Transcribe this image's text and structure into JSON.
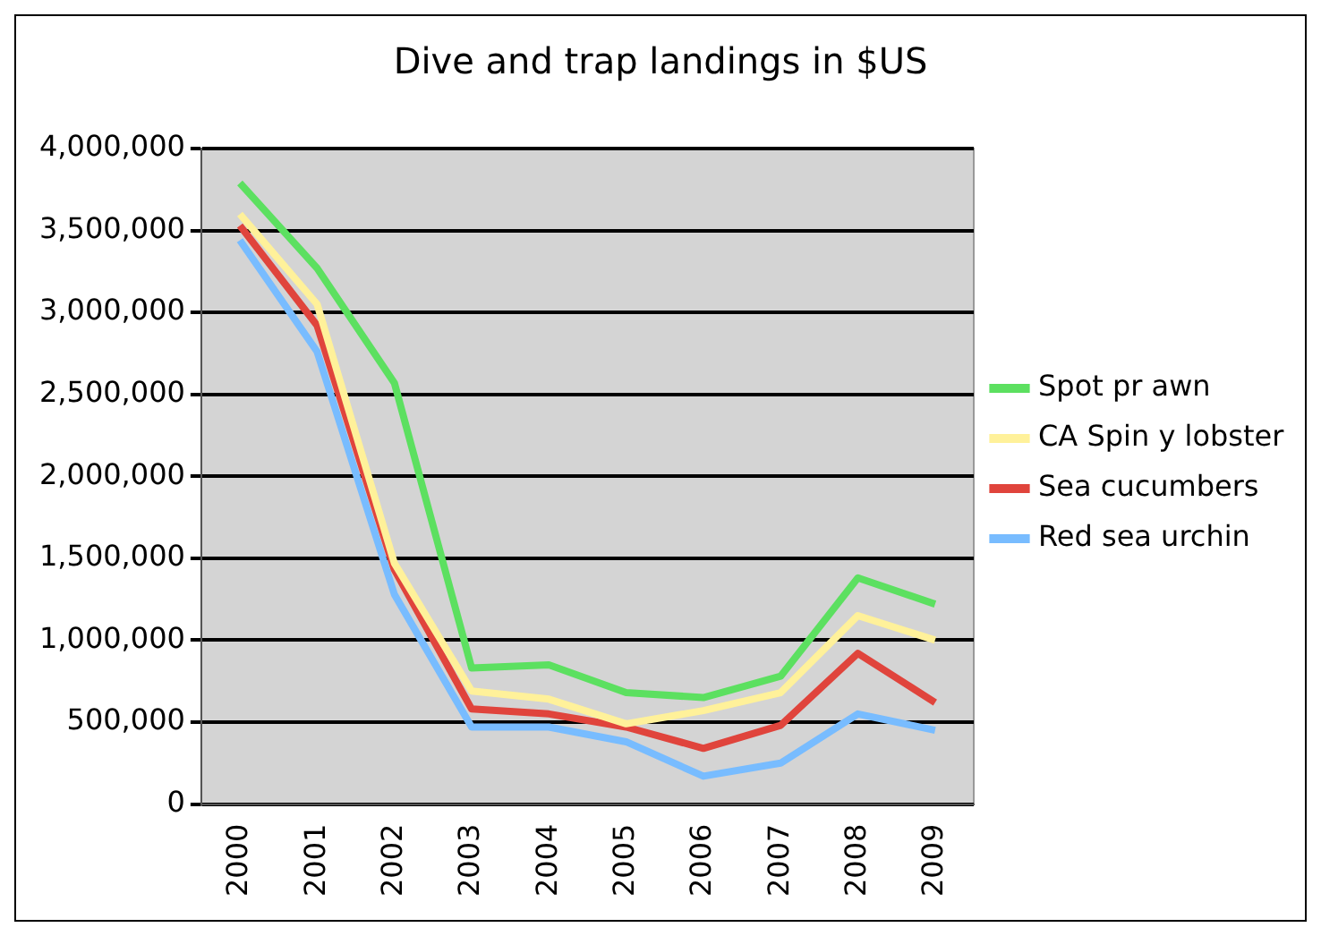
{
  "chart_data": {
    "type": "line",
    "title": "Dive and trap landings in $US",
    "categories": [
      "2000",
      "2001",
      "2002",
      "2003",
      "2004",
      "2005",
      "2006",
      "2007",
      "2008",
      "2009"
    ],
    "series": [
      {
        "name": "Spot pr awn",
        "color": "#5ce060",
        "values": [
          3790000,
          3270000,
          2570000,
          830000,
          850000,
          680000,
          650000,
          780000,
          1380000,
          1220000
        ]
      },
      {
        "name": "CA Spin y lobster",
        "color": "#fff19a",
        "values": [
          3600000,
          3050000,
          1470000,
          690000,
          640000,
          490000,
          570000,
          680000,
          1150000,
          1000000
        ]
      },
      {
        "name": "Sea cucumbers",
        "color": "#e0443c",
        "values": [
          3530000,
          2920000,
          1430000,
          580000,
          550000,
          470000,
          340000,
          480000,
          920000,
          620000
        ]
      },
      {
        "name": "Red sea urchin",
        "color": "#78bcff",
        "values": [
          3440000,
          2760000,
          1280000,
          470000,
          470000,
          380000,
          170000,
          250000,
          550000,
          450000
        ]
      }
    ],
    "ylim": [
      0,
      4000000
    ],
    "yticks": [
      0,
      {
        "value": 500000,
        "label": "500,000"
      },
      {
        "value": 1000000,
        "label": "1,000,000"
      },
      {
        "value": 1500000,
        "label": "1,500,000"
      },
      {
        "value": 2000000,
        "label": "2,000,000"
      },
      {
        "value": 2500000,
        "label": "2,500,000"
      },
      {
        "value": 3000000,
        "label": "3,000,000"
      },
      {
        "value": 3500000,
        "label": "3,500,000"
      },
      {
        "value": 4000000,
        "label": "4,000,000"
      }
    ],
    "grid": "y",
    "legend": "right",
    "marker": "none",
    "line_style": "solid"
  }
}
